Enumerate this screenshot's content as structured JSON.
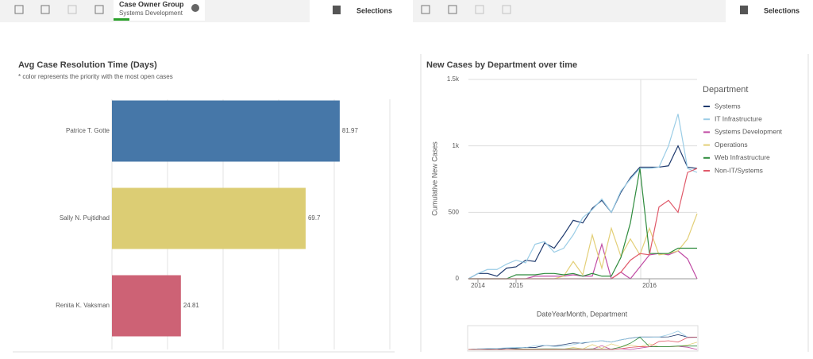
{
  "toolbar": {
    "selection_field": "Case Owner Group",
    "selection_value": "Systems Development",
    "selections_left": "Selections",
    "selections_right": "Selections"
  },
  "chart_data": [
    {
      "type": "bar",
      "orientation": "horizontal",
      "title": "Avg Case Resolution Time (Days)",
      "subtitle": "* color represents the priority with the most open cases",
      "categories": [
        "Patrice T. Gotte",
        "Sally N. Pujtidhad",
        "Renita K. Vaksman"
      ],
      "values": [
        81.97,
        69.7,
        24.81
      ],
      "colors": [
        "#4677a8",
        "#dccd74",
        "#cd6275"
      ],
      "xlim": [
        0,
        100
      ],
      "grid": true
    },
    {
      "type": "line",
      "title": "New Cases by Department over time",
      "x_label": "DateYearMonth, Department",
      "y_label": "Cumulative New Cases",
      "legend_title": "Department",
      "legend": "right",
      "x": [
        null,
        "2014",
        null,
        null,
        null,
        "2015",
        null,
        null,
        null,
        null,
        null,
        null,
        null,
        null,
        null,
        null,
        null,
        null,
        null,
        "2016",
        null,
        null,
        null,
        null,
        null
      ],
      "ylim": [
        0,
        1500
      ],
      "yticks": [
        0,
        500,
        {
          "value": 1000,
          "label": "1k"
        },
        {
          "value": 1500,
          "label": "1.5k"
        }
      ],
      "grid": true,
      "series": [
        {
          "name": "Systems",
          "color": "#1f3a6e",
          "values": [
            0,
            40,
            40,
            20,
            80,
            90,
            140,
            130,
            270,
            230,
            330,
            440,
            420,
            530,
            590,
            500,
            650,
            760,
            840,
            840,
            840,
            850,
            1000,
            840,
            830
          ]
        },
        {
          "name": "IT Infrastructure",
          "color": "#9bcde6",
          "values": [
            0,
            40,
            70,
            70,
            110,
            140,
            120,
            260,
            280,
            200,
            230,
            330,
            460,
            520,
            600,
            500,
            660,
            750,
            830,
            830,
            840,
            1000,
            1240,
            830,
            800
          ]
        },
        {
          "name": "Systems Development",
          "color": "#c04aa4",
          "values": [
            0,
            0,
            0,
            0,
            0,
            0,
            0,
            20,
            20,
            20,
            20,
            30,
            20,
            20,
            260,
            0,
            50,
            0,
            90,
            180,
            190,
            180,
            210,
            150,
            0
          ]
        },
        {
          "name": "Operations",
          "color": "#e3cf78",
          "values": [
            0,
            0,
            0,
            0,
            0,
            0,
            0,
            0,
            0,
            0,
            20,
            130,
            30,
            330,
            80,
            380,
            170,
            300,
            180,
            380,
            180,
            190,
            210,
            300,
            490
          ]
        },
        {
          "name": "Web Infrastructure",
          "color": "#2e8b3d",
          "values": [
            0,
            0,
            0,
            0,
            0,
            30,
            30,
            30,
            40,
            40,
            30,
            40,
            20,
            40,
            20,
            20,
            160,
            420,
            830,
            190,
            190,
            190,
            230,
            230,
            230
          ]
        },
        {
          "name": "Non-IT/Systems",
          "color": "#e05a6a",
          "values": [
            0,
            0,
            0,
            0,
            0,
            0,
            0,
            0,
            0,
            0,
            0,
            0,
            0,
            0,
            0,
            0,
            50,
            140,
            190,
            180,
            540,
            590,
            500,
            800,
            830
          ]
        }
      ]
    }
  ]
}
